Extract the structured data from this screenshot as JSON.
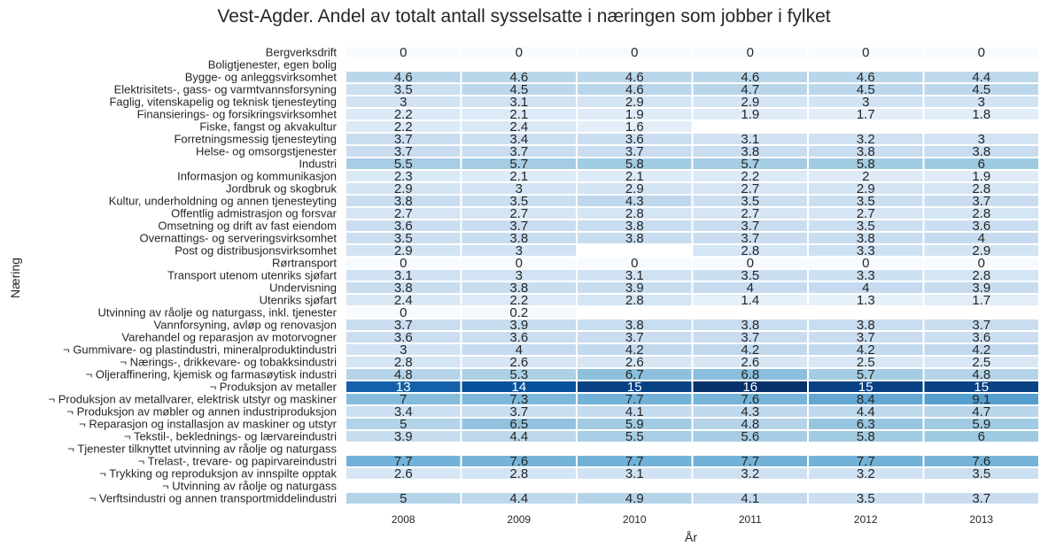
{
  "chart_data": {
    "type": "heatmap",
    "title": "Vest-Agder. Andel av totalt antall sysselsatte i næringen som jobber i fylket",
    "xlabel": "År",
    "ylabel": "Næring",
    "colormap": "Blues",
    "value_range": [
      0,
      16
    ],
    "x": [
      "2008",
      "2009",
      "2010",
      "2011",
      "2012",
      "2013"
    ],
    "rows": [
      {
        "label": "Bergverksdrift",
        "values": [
          0,
          0,
          0,
          0,
          0,
          0
        ]
      },
      {
        "label": "Boligtjenester, egen bolig",
        "values": [
          null,
          null,
          null,
          null,
          null,
          null
        ]
      },
      {
        "label": "Bygge- og anleggsvirksomhet",
        "values": [
          4.6,
          4.6,
          4.6,
          4.6,
          4.6,
          4.4
        ]
      },
      {
        "label": "Elektrisitets-, gass- og varmtvannsforsyning",
        "values": [
          3.5,
          4.5,
          4.6,
          4.7,
          4.5,
          4.5
        ]
      },
      {
        "label": "Faglig, vitenskapelig og teknisk tjenesteyting",
        "values": [
          3,
          3.1,
          2.9,
          2.9,
          3,
          3
        ]
      },
      {
        "label": "Finansierings- og forsikringsvirksomhet",
        "values": [
          2.2,
          2.1,
          1.9,
          1.9,
          1.7,
          1.8
        ]
      },
      {
        "label": "Fiske, fangst og akvakultur",
        "values": [
          2.2,
          2.4,
          1.6,
          null,
          null,
          null
        ]
      },
      {
        "label": "Forretningsmessig tjenesteyting",
        "values": [
          3.7,
          3.4,
          3.6,
          3.1,
          3.2,
          3
        ]
      },
      {
        "label": "Helse- og omsorgstjenester",
        "values": [
          3.7,
          3.7,
          3.7,
          3.8,
          3.8,
          3.8
        ]
      },
      {
        "label": "Industri",
        "values": [
          5.5,
          5.7,
          5.8,
          5.7,
          5.8,
          6
        ]
      },
      {
        "label": "Informasjon og kommunikasjon",
        "values": [
          2.3,
          2.1,
          2.1,
          2.2,
          2,
          1.9
        ]
      },
      {
        "label": "Jordbruk og skogbruk",
        "values": [
          2.9,
          3,
          2.9,
          2.7,
          2.9,
          2.8
        ]
      },
      {
        "label": "Kultur, underholdning og annen tjenesteyting",
        "values": [
          3.8,
          3.5,
          4.3,
          3.5,
          3.5,
          3.7
        ]
      },
      {
        "label": "Offentlig admistrasjon og forsvar",
        "values": [
          2.7,
          2.7,
          2.8,
          2.7,
          2.7,
          2.8
        ]
      },
      {
        "label": "Omsetning og drift av fast eiendom",
        "values": [
          3.6,
          3.7,
          3.8,
          3.7,
          3.5,
          3.6
        ]
      },
      {
        "label": "Overnattings- og serveringsvirksomhet",
        "values": [
          3.5,
          3.8,
          3.8,
          3.7,
          3.8,
          4
        ]
      },
      {
        "label": "Post og distribusjonsvirksomhet",
        "values": [
          2.9,
          3,
          null,
          2.8,
          3.3,
          2.9
        ]
      },
      {
        "label": "Rørtransport",
        "values": [
          0,
          0,
          0,
          0,
          0,
          0
        ]
      },
      {
        "label": "Transport utenom utenriks sjøfart",
        "values": [
          3.1,
          3,
          3.1,
          3.5,
          3.3,
          2.8
        ]
      },
      {
        "label": "Undervisning",
        "values": [
          3.8,
          3.8,
          3.9,
          4,
          4,
          3.9
        ]
      },
      {
        "label": "Utenriks sjøfart",
        "values": [
          2.4,
          2.2,
          2.8,
          1.4,
          1.3,
          1.7
        ]
      },
      {
        "label": "Utvinning av råolje og naturgass, inkl. tjenester",
        "values": [
          0,
          0.2,
          null,
          null,
          null,
          null
        ]
      },
      {
        "label": "Vannforsyning, avløp og renovasjon",
        "values": [
          3.7,
          3.9,
          3.8,
          3.8,
          3.8,
          3.7
        ]
      },
      {
        "label": "Varehandel og reparasjon av motorvogner",
        "values": [
          3.6,
          3.6,
          3.7,
          3.7,
          3.7,
          3.6
        ]
      },
      {
        "label": "¬ Gummivare- og plastindustri, mineralproduktindustri",
        "values": [
          3,
          4,
          4.2,
          4.2,
          4.2,
          4.2
        ]
      },
      {
        "label": "¬ Nærings-, drikkevare- og tobakksindustri",
        "values": [
          2.8,
          2.6,
          2.6,
          2.6,
          2.5,
          2.5
        ]
      },
      {
        "label": "¬ Oljeraffinering, kjemisk og farmasøytisk industri",
        "values": [
          4.8,
          5.3,
          6.7,
          6.8,
          5.7,
          4.8
        ]
      },
      {
        "label": "¬ Produksjon av metaller",
        "values": [
          13,
          14,
          15,
          16,
          15,
          15
        ]
      },
      {
        "label": "¬ Produksjon av metallvarer, elektrisk utstyr og maskiner",
        "values": [
          7,
          7.3,
          7.7,
          7.6,
          8.4,
          9.1
        ]
      },
      {
        "label": "¬ Produksjon av møbler og annen industriproduksjon",
        "values": [
          3.4,
          3.7,
          4.1,
          4.3,
          4.4,
          4.7
        ]
      },
      {
        "label": "¬ Reparasjon og installasjon av maskiner og utstyr",
        "values": [
          5,
          6.5,
          5.9,
          4.8,
          6.3,
          5.9
        ]
      },
      {
        "label": "¬ Tekstil-, beklednings- og lærvareindustri",
        "values": [
          3.9,
          4.4,
          5.5,
          5.6,
          5.8,
          6
        ]
      },
      {
        "label": "¬ Tjenester tilknyttet utvinning av råolje og naturgass",
        "values": [
          null,
          null,
          null,
          null,
          null,
          null
        ]
      },
      {
        "label": "¬ Trelast-, trevare- og papirvareindustri",
        "values": [
          7.7,
          7.6,
          7.7,
          7.7,
          7.7,
          7.6
        ]
      },
      {
        "label": "¬ Trykking og reproduksjon av innspilte opptak",
        "values": [
          2.6,
          2.8,
          3.1,
          3.2,
          3.2,
          3.5
        ]
      },
      {
        "label": "¬ Utvinning av råolje og naturgass",
        "values": [
          null,
          null,
          null,
          null,
          null,
          null
        ]
      },
      {
        "label": "¬ Verftsindustri og annen transportmiddelindustri",
        "values": [
          5,
          4.4,
          4.9,
          4.1,
          3.5,
          3.7
        ]
      }
    ]
  }
}
